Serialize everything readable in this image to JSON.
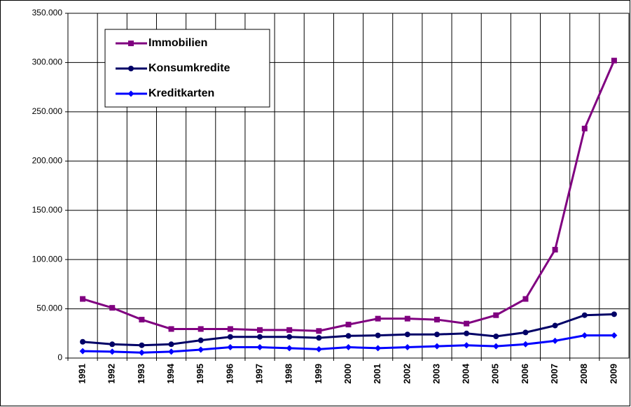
{
  "chart_data": {
    "type": "line",
    "categories": [
      "1991",
      "1992",
      "1993",
      "1994",
      "1995",
      "1996",
      "1997",
      "1998",
      "1999",
      "2000",
      "2001",
      "2002",
      "2003",
      "2004",
      "2005",
      "2006",
      "2007",
      "2008",
      "2009"
    ],
    "series": [
      {
        "name": "Immobilien",
        "color": "#800080",
        "marker": "square",
        "values": [
          60000,
          51000,
          39000,
          29500,
          29500,
          29500,
          28500,
          28500,
          27500,
          34000,
          40000,
          40000,
          39000,
          35000,
          43500,
          60000,
          110000,
          233000,
          302000
        ]
      },
      {
        "name": "Konsumkredite",
        "color": "#000066",
        "marker": "circle",
        "values": [
          16500,
          14000,
          13000,
          14000,
          18000,
          21500,
          21500,
          21500,
          20500,
          22500,
          23000,
          24000,
          24000,
          25000,
          22000,
          26000,
          33000,
          43500,
          44500
        ]
      },
      {
        "name": "Kreditkarten",
        "color": "#0000ff",
        "marker": "diamond",
        "values": [
          7000,
          6500,
          5500,
          6500,
          8500,
          11000,
          11000,
          10000,
          9000,
          11000,
          10000,
          11000,
          12000,
          13000,
          12000,
          14000,
          17500,
          23000,
          23000
        ]
      }
    ],
    "ylim": [
      0,
      350000
    ],
    "yticks": [
      0,
      {
        "value": 50000,
        "label": "50.000"
      },
      {
        "value": 100000,
        "label": "100.000"
      },
      {
        "value": 150000,
        "label": "150.000"
      },
      {
        "value": 200000,
        "label": "200.000"
      },
      {
        "value": 250000,
        "label": "250.000"
      },
      {
        "value": 300000,
        "label": "300.000"
      },
      {
        "value": 350000,
        "label": "350.000"
      }
    ],
    "grid": true,
    "legend": "upper left"
  }
}
